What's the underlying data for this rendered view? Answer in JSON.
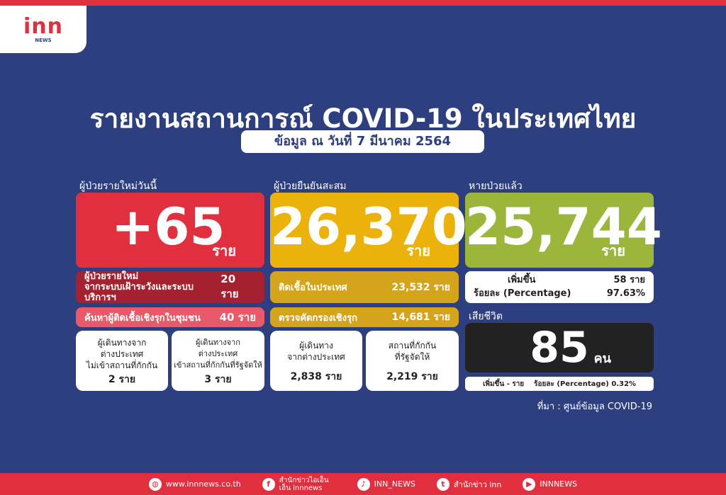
{
  "logo": {
    "brand": "inn",
    "sub": "NEWS"
  },
  "title": "รายงานสถานการณ์ COVID-19 ในประเทศไทย",
  "subtitle": "ข้อมูล ณ วันที่ 7 มีนาคม 2564",
  "colors": {
    "background": "#2e3f80",
    "red": "#e0303f",
    "yellow": "#ecb20c",
    "green": "#9bb63b",
    "dark": "#222222"
  },
  "new_cases": {
    "label": "ผู้ป่วยรายใหม่วันนี้",
    "value": "+65",
    "unit": "ราย",
    "surveillance": {
      "label1": "ผู้ป่วยรายใหม่",
      "label2": "จากระบบเฝ้าระวังและระบบบริการฯ",
      "value": "20 ราย"
    },
    "community": {
      "label": "ค้นหาผู้ติดเชื้อเชิงรุกในชุมชน",
      "value": "40 ราย"
    },
    "travel_no_quarantine": {
      "l1": "ผู้เดินทางจาก",
      "l2": "ต่างประเทศ",
      "l3": "ไม่เข้าสถานที่กักกัน",
      "value": "2 ราย"
    },
    "travel_state_quarantine": {
      "l1": "ผู้เดินทางจาก",
      "l2": "ต่างประเทศ",
      "l3": "เข้าสถานที่กักกันที่รัฐจัดให้",
      "value": "3 ราย"
    }
  },
  "cumulative": {
    "label": "ผู้ป่วยยืนยันสะสม",
    "value": "26,370",
    "unit": "ราย",
    "domestic": {
      "label": "ติดเชื้อในประเทศ",
      "value": "23,532 ราย"
    },
    "active_screening": {
      "label": "ตรวจคัดกรองเชิงรุก",
      "value": "14,681 ราย"
    },
    "travelers": {
      "l1": "ผู้เดินทาง",
      "l2": "จากต่างประเทศ",
      "value": "2,838 ราย"
    },
    "quarantine": {
      "l1": "สถานที่กักกัน",
      "l2": "ที่รัฐจัดให้",
      "value": "2,219 ราย"
    }
  },
  "recovered": {
    "label": "หายป่วยแล้ว",
    "value": "25,744",
    "unit": "ราย",
    "increase_label": "เพิ่มขึ้น",
    "increase_value": "58 ราย",
    "pct_label": "ร้อยละ (Percentage)",
    "pct_value": "97.63%"
  },
  "deaths": {
    "label": "เสียชีวิต",
    "value": "85",
    "unit": "คน",
    "increase": "เพิ่มขึ้น - ราย",
    "pct": "ร้อยละ (Percentage) 0.32%"
  },
  "source": "ที่มา : ศูนย์ข้อมูล COVID-19",
  "footer": [
    {
      "icon": "globe-icon",
      "text": "www.innnews.co.th"
    },
    {
      "icon": "facebook-icon",
      "text": "สำนักข่าวไอเอ็นเอ็น innnews"
    },
    {
      "icon": "tiktok-icon",
      "text": "INN_NEWS"
    },
    {
      "icon": "twitter-icon",
      "text": "สำนักข่าว inn"
    },
    {
      "icon": "youtube-icon",
      "text": "INNNEWS"
    }
  ]
}
